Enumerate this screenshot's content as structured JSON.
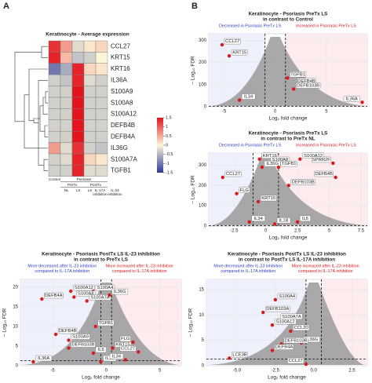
{
  "panel_labels": [
    "A",
    "B"
  ],
  "chart_data": [
    {
      "type": "heatmap",
      "title": "Keratinocyte - Average expression",
      "rows": [
        "CCL27",
        "KRT15",
        "KRT16",
        "IL36A",
        "S100A9",
        "S100A8",
        "S100A12",
        "DEFB4B",
        "DEFB4A",
        "IL36G",
        "S100A7A",
        "TGFB1"
      ],
      "header_rows": [
        [
          "Control",
          "Psoriasis"
        ],
        [
          "PreTx",
          "PostTx"
        ],
        [
          "NL",
          "LS",
          "LS",
          "IL-17A inhibition",
          "IL-23 inhibition"
        ]
      ],
      "values": [
        [
          1.3,
          0.6,
          -0.2,
          0.1,
          0.2
        ],
        [
          1.4,
          0.4,
          -0.4,
          -0.3,
          0.0
        ],
        [
          -1.0,
          -0.6,
          1.4,
          0.2,
          0.1
        ],
        [
          -0.3,
          -0.4,
          1.4,
          -0.2,
          -0.3
        ],
        [
          -0.3,
          -0.3,
          1.5,
          -0.3,
          -0.3
        ],
        [
          -0.3,
          -0.3,
          1.5,
          -0.3,
          -0.3
        ],
        [
          -0.3,
          -0.3,
          1.5,
          -0.3,
          -0.3
        ],
        [
          -0.3,
          -0.3,
          1.5,
          -0.3,
          -0.3
        ],
        [
          -0.3,
          -0.3,
          1.5,
          -0.3,
          -0.3
        ],
        [
          0.6,
          -0.2,
          1.3,
          -0.3,
          -0.4
        ],
        [
          -0.3,
          -0.2,
          1.4,
          0.2,
          0.1
        ],
        [
          -0.3,
          -0.3,
          1.4,
          -0.2,
          -0.2
        ]
      ],
      "colors": [
        "#2b3a97",
        "#fbf5d8",
        "#e3151c"
      ],
      "clim": [
        -1.5,
        1.5
      ],
      "cticks": [
        1.5,
        1,
        0.5,
        0,
        -0.5,
        -1,
        -1.5
      ]
    },
    {
      "type": "scatter",
      "title": "Keratinocyte - Psoriasis PreTx LS",
      "subtitle": "in contrast to Control",
      "left_note": [
        "Decreased in Psoriasis PreTx LS"
      ],
      "right_note": [
        "Increased in Psoriasis PreTx LS"
      ],
      "x_label": "Log₂ fold change",
      "y_label": "− Log₁₀ FDR",
      "labels": [
        "CCL27",
        "KRT15",
        "TGFB1",
        "DEFB4B",
        "DEFB103B",
        "IL34",
        "IL36A"
      ],
      "x": [
        -5.2,
        -4.5,
        1.2,
        4.2,
        1.8,
        -3.5,
        8.5
      ],
      "y": [
        280,
        230,
        130,
        100,
        80,
        30,
        20
      ],
      "xlim": [
        -6.5,
        9
      ],
      "ylim": [
        0,
        330
      ],
      "xticks": [
        -5,
        0,
        5
      ],
      "yticks": [
        0,
        100,
        200,
        300
      ],
      "vlines": [
        -1,
        1
      ],
      "hline": 1.3,
      "point_color": "#d7191c"
    },
    {
      "type": "scatter",
      "title": "Keratinocyte - Psoriasis PreTx LS",
      "subtitle": "in contrast to PreTx NL",
      "left_note": [
        "Decreased in Psoriasis PreTx LS"
      ],
      "right_note": [
        "Increased in Psoriasis PreTx LS"
      ],
      "x_label": "Log₂ fold change",
      "y_label": "− Log₁₀ FDR",
      "labels": [
        "CCL27",
        "KRT16",
        "S100A8",
        "S100A12",
        "SPRR2F",
        "IL36G",
        "TGFB1",
        "DEFB4B",
        "DEFB103B",
        "FLG",
        "KRT15",
        "IL34",
        "IL1B",
        "IL6"
      ],
      "x": [
        -3.4,
        -0.5,
        0.2,
        2.7,
        5.3,
        -0.3,
        1.0,
        5.5,
        1.8,
        -2.3,
        -0.6,
        -1.3,
        0.7,
        2.5
      ],
      "y": [
        240,
        330,
        310,
        330,
        310,
        290,
        290,
        240,
        200,
        160,
        120,
        20,
        10,
        20
      ],
      "xlim": [
        -4.5,
        8
      ],
      "ylim": [
        0,
        360
      ],
      "xticks": [
        -2.5,
        0,
        2.5,
        5,
        7.5
      ],
      "yticks": [
        0,
        100,
        200,
        300
      ],
      "vlines": [
        -1,
        1
      ],
      "hline": 1.3,
      "point_color": "#d7191c"
    },
    {
      "type": "scatter",
      "title": "Keratinocyte - Psoriasis PostTx LS IL-23 inhibition",
      "subtitle": "in contrast to PreTx LS",
      "left_note": [
        "More decreased after IL-23 inhibition",
        "compared to IL-17A inhibition"
      ],
      "right_note": [
        "More increased after IL-23 inhibition",
        "compared to IL-17A inhibition"
      ],
      "x_label": "Log₂ fold change",
      "y_label": "− Log₁₀ FDR",
      "labels": [
        "DEFB4A",
        "S100A12",
        "S100A4",
        "S100A8",
        "S100A7A",
        "IL36G",
        "TGFB1",
        "DEFB4B",
        "S100A9",
        "DEFB103B",
        "IL36A",
        "KRT15",
        "IL6",
        "IL1B",
        "FLG",
        "CCL27",
        "IL34"
      ],
      "x": [
        -6,
        -3.3,
        -1.2,
        -3.0,
        -1.8,
        0.3,
        -1,
        -4.7,
        -3.5,
        -3.5,
        -6.8,
        0.6,
        -1.2,
        -0.5,
        2.5,
        3,
        1.8
      ],
      "y": [
        17,
        19,
        19,
        17.5,
        16.5,
        18,
        10,
        8,
        6.5,
        4.5,
        1,
        4.5,
        3.2,
        1,
        6,
        3.5,
        1.5
      ],
      "xlim": [
        -8,
        7
      ],
      "ylim": [
        0,
        22
      ],
      "xticks": [
        -5,
        0,
        5
      ],
      "yticks": [
        0,
        5,
        10,
        15,
        20
      ],
      "vlines": [
        -0.5,
        0.5
      ],
      "hline": 1.3,
      "point_color": "#d7191c"
    },
    {
      "type": "scatter",
      "title": "Keratinocyte - Psoriasis PostTx LS IL-23 inhibition",
      "subtitle": "in contrast to PostTx LS IL-17A inhibition",
      "left_note": [
        "More decreased after IL-23 inhibition",
        "compared to IL-17A inhibition"
      ],
      "right_note": [
        "More increased after IL-23 inhibition",
        "compared to IL-17A inhibition"
      ],
      "x_label": "Log₂ fold change",
      "y_label": "− Log₁₀ FDR",
      "labels": [
        "S100A4",
        "DEFB103A",
        "S100A7A",
        "S100A12",
        "CCL20",
        "IL36G",
        "DEFB103B",
        "DEFB4A",
        "LCE3B",
        "CCL27"
      ],
      "x": [
        -2.5,
        -3.3,
        -2.3,
        -2.7,
        -1.5,
        -0.8,
        -2.1,
        -2.7,
        -5.5,
        -0.5
      ],
      "y": [
        13,
        10.5,
        9,
        8,
        6.8,
        4.5,
        4.3,
        3,
        1.5,
        0.3
      ],
      "xlim": [
        -7,
        3.5
      ],
      "ylim": [
        0,
        17
      ],
      "xticks": [
        {
          "value": -5,
          "label": "-5.0"
        },
        {
          "value": -2.5,
          "label": "-2.5"
        },
        {
          "value": 0,
          "label": "0.0"
        },
        {
          "value": 2.5,
          "label": "2.5"
        }
      ],
      "yticks": [
        0,
        5,
        10,
        15
      ],
      "vlines": [
        -0.5,
        0.5
      ],
      "hline": 1.3,
      "point_color": "#d7191c"
    }
  ]
}
